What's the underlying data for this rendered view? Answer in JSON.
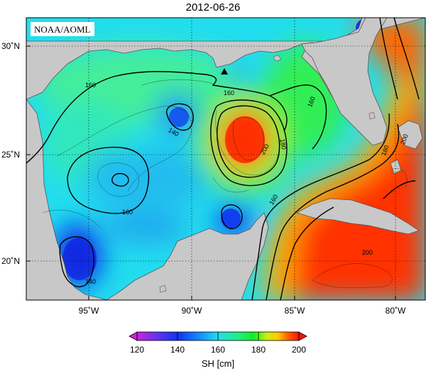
{
  "title": "2012-06-26",
  "credit": "NOAA/AOML",
  "lat_labels": [
    "30˚N",
    "25˚N",
    "20˚N"
  ],
  "lon_labels": [
    "95˚W",
    "90˚W",
    "85˚W",
    "80˚W"
  ],
  "contour_labels": {
    "c160_nw": "160",
    "c160_center": "160",
    "c160_east": "160",
    "c160_sw": "160",
    "c160_strait": "160",
    "c140_mid": "140",
    "c140_sw": "140",
    "c180_loop": "180",
    "c200_loop": "200",
    "c180_straits": "180",
    "c200_east": "200",
    "c200_carib": "200"
  },
  "colorbar": {
    "ticks": [
      "120",
      "140",
      "160",
      "180",
      "200"
    ],
    "unit_label": "SH [cm]"
  },
  "colors": {
    "land": "#c8c8c8",
    "c120": "#8800cc",
    "c140": "#1133ee",
    "c160": "#22ddee",
    "c180": "#11ee22",
    "c200": "#ff1100"
  }
}
